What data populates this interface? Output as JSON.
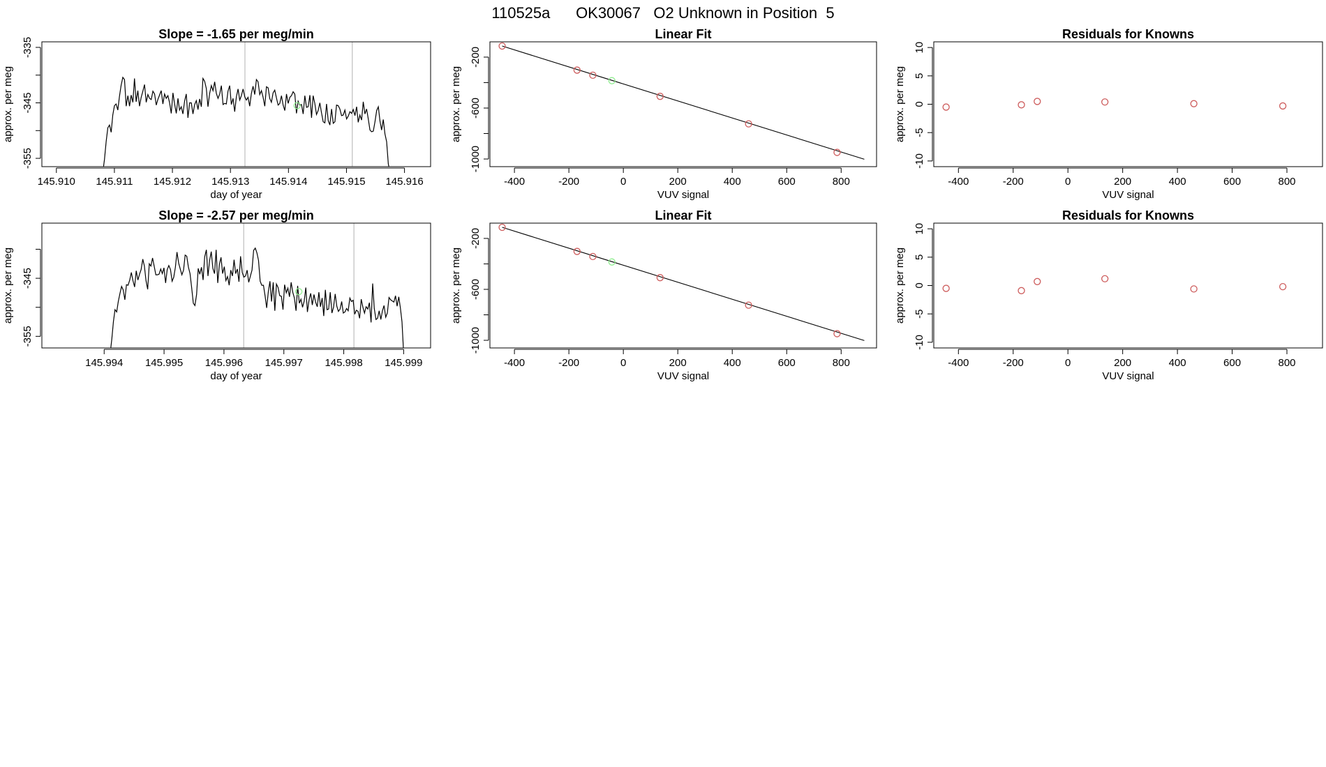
{
  "page_title": "110525a      OK30067   O2 Unknown in Position  5",
  "colors": {
    "axis": "#000000",
    "trace": "#000000",
    "known_point": "#cd5c5c",
    "unknown_point": "#90ee90",
    "marker_line": "#bebebe"
  },
  "chart_data": [
    {
      "type": "line",
      "panel": "top-left",
      "title": "Slope =  -1.65  per meg/min",
      "xlabel": "day of year",
      "ylabel": "approx. per meg",
      "xlim": [
        145.90975,
        145.91645
      ],
      "ylim": [
        -356.5,
        -334.0
      ],
      "xticks": [
        145.91,
        145.911,
        145.912,
        145.913,
        145.914,
        145.915,
        145.916
      ],
      "xtick_labels": [
        "145.910",
        "145.911",
        "145.912",
        "145.913",
        "145.914",
        "145.915",
        "145.916"
      ],
      "yticks": [
        -355,
        -350,
        -345,
        -340,
        -335
      ],
      "ytick_labels": [
        "-355",
        "",
        "-345",
        "",
        "-335"
      ],
      "vlines": [
        145.91325,
        145.9151
      ],
      "trace_start": 145.9108,
      "trace_end": 145.91575,
      "start_level": -357.5,
      "end_level": -357.5,
      "highlight": {
        "x": 145.91415,
        "y": -345.5
      },
      "series": [
        {
          "name": "signal",
          "values": [
            -355.2,
            -352.0,
            -349.5,
            -349.0,
            -350.3,
            -347.2,
            -345.5,
            -345.2,
            -346.3,
            -343.8,
            -341.8,
            -340.4,
            -340.8,
            -345.6,
            -343.7,
            -345.6,
            -343.6,
            -344.9,
            -340.6,
            -344.8,
            -342.8,
            -345.6,
            -344.0,
            -342.9,
            -341.7,
            -344.9,
            -343.5,
            -344.2,
            -344.4,
            -342.9,
            -343.4,
            -345.4,
            -344.4,
            -343.6,
            -342.8,
            -345.2,
            -343.4,
            -344.2,
            -343.7,
            -345.0,
            -346.9,
            -343.2,
            -345.2,
            -346.9,
            -344.2,
            -346.3,
            -345.7,
            -347.0,
            -344.7,
            -343.4,
            -347.7,
            -345.0,
            -345.0,
            -347.0,
            -345.3,
            -344.6,
            -346.2,
            -344.3,
            -345.7,
            -340.6,
            -341.1,
            -342.4,
            -345.7,
            -343.3,
            -341.9,
            -342.8,
            -341.2,
            -343.3,
            -344.2,
            -343.4,
            -341.9,
            -345.3,
            -345.1,
            -345.2,
            -342.9,
            -341.9,
            -345.3,
            -344.2,
            -346.6,
            -343.9,
            -342.5,
            -344.5,
            -343.7,
            -342.5,
            -343.9,
            -344.5,
            -344.0,
            -345.6,
            -343.3,
            -342.0,
            -343.5,
            -340.8,
            -341.2,
            -343.5,
            -342.8,
            -344.0,
            -345.6,
            -342.1,
            -342.3,
            -344.2,
            -344.9,
            -343.2,
            -342.7,
            -344.1,
            -345.4,
            -345.1,
            -343.7,
            -345.4,
            -346.4,
            -343.4,
            -345.1,
            -344.0,
            -343.7,
            -343.0,
            -343.4,
            -346.9,
            -344.7,
            -345.4,
            -345.3,
            -347.0,
            -343.7,
            -345.8,
            -345.7,
            -343.6,
            -347.7,
            -343.7,
            -345.1,
            -347.1,
            -346.4,
            -345.0,
            -346.8,
            -348.4,
            -348.6,
            -345.2,
            -348.2,
            -349.0,
            -346.1,
            -348.7,
            -348.4,
            -345.4,
            -345.5,
            -346.1,
            -347.3,
            -347.2,
            -346.3,
            -347.9,
            -347.4,
            -346.6,
            -346.9,
            -346.2,
            -347.3,
            -345.7,
            -348.5,
            -347.2,
            -348.1,
            -344.8,
            -347.0,
            -346.1,
            -347.9,
            -349.9,
            -350.2,
            -350.1,
            -348.4,
            -346.4,
            -345.7,
            -348.3,
            -349.9,
            -348.0,
            -350.6,
            -352.0,
            -356.0
          ]
        }
      ]
    },
    {
      "type": "scatter",
      "panel": "top-middle",
      "title": "Linear Fit",
      "xlabel": "VUV signal",
      "ylabel": "approx. per meg",
      "xlim": [
        -490,
        930
      ],
      "ylim": [
        -1060,
        -80
      ],
      "xticks": [
        -400,
        -200,
        0,
        200,
        400,
        600,
        800
      ],
      "xtick_labels": [
        "-400",
        "-200",
        "0",
        "200",
        "400",
        "600",
        "800"
      ],
      "yticks": [
        -1000,
        -800,
        -600,
        -400,
        -200
      ],
      "ytick_labels": [
        "-1000",
        "",
        "-600",
        "",
        "-200"
      ],
      "fit_line": {
        "x": [
          -445,
          885
        ],
        "y": [
          -113,
          -1002
        ]
      },
      "knowns": {
        "x": [
          -445,
          -170,
          -112,
          135,
          460,
          785
        ],
        "y": [
          -113,
          -302,
          -342,
          -508,
          -724,
          -948
        ]
      },
      "unknowns": {
        "x": [
          -42
        ],
        "y": [
          -385
        ]
      }
    },
    {
      "type": "scatter",
      "panel": "top-right",
      "title": "Residuals for Knowns",
      "xlabel": "VUV signal",
      "ylabel": "approx. per meg",
      "xlim": [
        -490,
        930
      ],
      "ylim": [
        -11,
        11
      ],
      "xticks": [
        -400,
        -200,
        0,
        200,
        400,
        600,
        800
      ],
      "xtick_labels": [
        "-400",
        "-200",
        "0",
        "200",
        "400",
        "600",
        "800"
      ],
      "yticks": [
        -10,
        -5,
        0,
        5,
        10
      ],
      "ytick_labels": [
        "-10",
        "-5",
        "0",
        "5",
        "10"
      ],
      "values": {
        "x": [
          -445,
          -170,
          -112,
          135,
          460,
          785
        ],
        "y": [
          -0.5,
          -0.1,
          0.5,
          0.4,
          0.1,
          -0.3
        ]
      }
    },
    {
      "type": "line",
      "panel": "bottom-left",
      "title": "Slope =  -2.57  per meg/min",
      "xlabel": "day of year",
      "ylabel": "approx. per meg",
      "xlim": [
        145.99296,
        145.99945
      ],
      "ylim": [
        -357.0,
        -335.5
      ],
      "xticks": [
        145.994,
        145.995,
        145.996,
        145.997,
        145.998,
        145.999
      ],
      "xtick_labels": [
        "145.994",
        "145.995",
        "145.996",
        "145.997",
        "145.998",
        "145.999"
      ],
      "yticks": [
        -355,
        -350,
        -345,
        -340
      ],
      "ytick_labels": [
        "-355",
        "",
        "-345",
        ""
      ],
      "vlines": [
        145.99633,
        145.99817
      ],
      "trace_start": 145.9941,
      "trace_end": 145.999,
      "start_level": -358.0,
      "end_level": -358.0,
      "highlight": {
        "x": 145.99725,
        "y": -347.3
      },
      "series": [
        {
          "name": "signal",
          "values": [
            -355.5,
            -352.5,
            -350.4,
            -350.8,
            -349.0,
            -347.6,
            -346.4,
            -347.0,
            -348.7,
            -346.1,
            -346.2,
            -345.3,
            -344.0,
            -345.4,
            -346.5,
            -343.7,
            -345.3,
            -344.3,
            -343.5,
            -341.7,
            -342.9,
            -345.4,
            -346.9,
            -342.5,
            -342.9,
            -341.5,
            -342.9,
            -344.4,
            -344.4,
            -344.3,
            -343.4,
            -344.2,
            -343.2,
            -345.8,
            -343.5,
            -342.8,
            -343.5,
            -345.5,
            -344.8,
            -343.1,
            -340.5,
            -342.4,
            -343.4,
            -344.4,
            -343.6,
            -341.0,
            -341.2,
            -343.1,
            -344.2,
            -346.7,
            -349.3,
            -349.7,
            -347.8,
            -343.3,
            -344.3,
            -343.1,
            -345.3,
            -341.3,
            -340.1,
            -344.6,
            -341.9,
            -340.4,
            -343.3,
            -344.2,
            -340.1,
            -345.8,
            -342.6,
            -341.4,
            -344.2,
            -343.0,
            -345.4,
            -344.7,
            -346.2,
            -343.6,
            -344.6,
            -341.8,
            -344.2,
            -343.4,
            -345.6,
            -341.2,
            -344.0,
            -344.8,
            -344.6,
            -343.6,
            -345.7,
            -344.6,
            -343.6,
            -340.2,
            -339.8,
            -340.6,
            -341.9,
            -345.5,
            -346.2,
            -346.2,
            -348.0,
            -350.1,
            -347.3,
            -345.5,
            -349.0,
            -345.7,
            -350.6,
            -346.0,
            -346.6,
            -348.0,
            -348.1,
            -350.4,
            -346.1,
            -347.5,
            -346.7,
            -348.2,
            -345.7,
            -347.4,
            -348.4,
            -350.6,
            -346.3,
            -349.3,
            -348.6,
            -350.0,
            -348.9,
            -346.6,
            -350.8,
            -348.7,
            -347.6,
            -349.6,
            -347.8,
            -349.1,
            -349.9,
            -347.4,
            -349.9,
            -348.4,
            -351.5,
            -347.0,
            -350.4,
            -350.3,
            -347.4,
            -351.0,
            -350.0,
            -347.7,
            -349.8,
            -350.7,
            -350.3,
            -349.0,
            -351.0,
            -350.8,
            -350.2,
            -350.6,
            -348.4,
            -349.0,
            -348.8,
            -351.2,
            -350.5,
            -350.7,
            -351.9,
            -348.6,
            -350.0,
            -351.0,
            -349.9,
            -350.3,
            -349.2,
            -352.6,
            -345.9,
            -350.2,
            -352.1,
            -351.9,
            -350.6,
            -352.1,
            -350.6,
            -349.7,
            -351.7,
            -351.0,
            -348.3,
            -348.7,
            -348.9,
            -349.1,
            -348.0,
            -349.8,
            -348.2,
            -350.1,
            -352.5
          ]
        }
      ]
    },
    {
      "type": "scatter",
      "panel": "bottom-middle",
      "title": "Linear Fit",
      "xlabel": "VUV signal",
      "ylabel": "approx. per meg",
      "xlim": [
        -490,
        930
      ],
      "ylim": [
        -1060,
        -80
      ],
      "xticks": [
        -400,
        -200,
        0,
        200,
        400,
        600,
        800
      ],
      "xtick_labels": [
        "-400",
        "-200",
        "0",
        "200",
        "400",
        "600",
        "800"
      ],
      "yticks": [
        -1000,
        -800,
        -600,
        -400,
        -200
      ],
      "ytick_labels": [
        "-1000",
        "",
        "-600",
        "",
        "-200"
      ],
      "fit_line": {
        "x": [
          -445,
          885
        ],
        "y": [
          -113,
          -1002
        ]
      },
      "knowns": {
        "x": [
          -445,
          -170,
          -112,
          135,
          460,
          785
        ],
        "y": [
          -113,
          -302,
          -342,
          -508,
          -724,
          -948
        ]
      },
      "unknowns": {
        "x": [
          -42
        ],
        "y": [
          -385
        ]
      }
    },
    {
      "type": "scatter",
      "panel": "bottom-right",
      "title": "Residuals for Knowns",
      "xlabel": "VUV signal",
      "ylabel": "approx. per meg",
      "xlim": [
        -490,
        930
      ],
      "ylim": [
        -11,
        11
      ],
      "xticks": [
        -400,
        -200,
        0,
        200,
        400,
        600,
        800
      ],
      "xtick_labels": [
        "-400",
        "-200",
        "0",
        "200",
        "400",
        "600",
        "800"
      ],
      "yticks": [
        -10,
        -5,
        0,
        5,
        10
      ],
      "ytick_labels": [
        "-10",
        "-5",
        "0",
        "5",
        "10"
      ],
      "values": {
        "x": [
          -445,
          -170,
          -112,
          135,
          460,
          785
        ],
        "y": [
          -0.5,
          -0.9,
          0.7,
          1.2,
          -0.6,
          -0.2
        ]
      }
    }
  ]
}
